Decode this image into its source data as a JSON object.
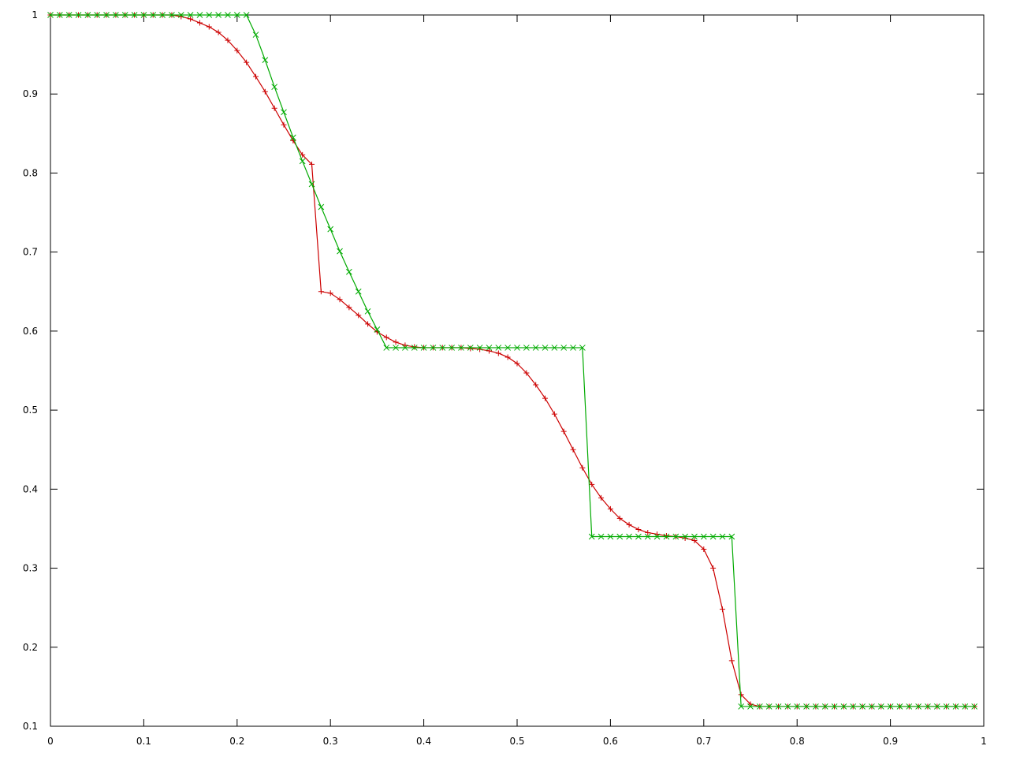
{
  "chart_data": {
    "type": "line",
    "title": "",
    "xlabel": "",
    "ylabel": "",
    "xlim": [
      0,
      1
    ],
    "ylim": [
      0.1,
      1
    ],
    "grid": false,
    "legend": "none",
    "x_ticks": [
      "0",
      "0.1",
      "0.2",
      "0.3",
      "0.4",
      "0.5",
      "0.6",
      "0.7",
      "0.8",
      "0.9",
      "1"
    ],
    "y_ticks": [
      "0.1",
      "0.2",
      "0.3",
      "0.4",
      "0.5",
      "0.6",
      "0.7",
      "0.8",
      "0.9",
      "1"
    ],
    "x": [
      0,
      0.01,
      0.02,
      0.03,
      0.04,
      0.05,
      0.06,
      0.07,
      0.08,
      0.09,
      0.1,
      0.11,
      0.12,
      0.13,
      0.14,
      0.15,
      0.16,
      0.17,
      0.18,
      0.19,
      0.2,
      0.21,
      0.22,
      0.23,
      0.24,
      0.25,
      0.26,
      0.27,
      0.28,
      0.29,
      0.3,
      0.31,
      0.32,
      0.33,
      0.34,
      0.35,
      0.36,
      0.37,
      0.38,
      0.39,
      0.4,
      0.41,
      0.42,
      0.43,
      0.44,
      0.45,
      0.46,
      0.47,
      0.48,
      0.49,
      0.5,
      0.51,
      0.52,
      0.53,
      0.54,
      0.55,
      0.56,
      0.57,
      0.58,
      0.59,
      0.6,
      0.61,
      0.62,
      0.63,
      0.64,
      0.65,
      0.66,
      0.67,
      0.68,
      0.69,
      0.7,
      0.71,
      0.72,
      0.73,
      0.74,
      0.75,
      0.76,
      0.77,
      0.78,
      0.79,
      0.8,
      0.81,
      0.82,
      0.83,
      0.84,
      0.85,
      0.86,
      0.87,
      0.88,
      0.89,
      0.9,
      0.91,
      0.92,
      0.93,
      0.94,
      0.95,
      0.96,
      0.97,
      0.98,
      0.99
    ],
    "series": [
      {
        "color": "#cc0000",
        "marker": "+",
        "values": [
          1,
          1,
          1,
          1,
          1,
          1,
          1,
          1,
          1,
          1,
          1,
          1,
          1,
          1,
          0.998,
          0.995,
          0.99,
          0.985,
          0.978,
          0.968,
          0.955,
          0.94,
          0.922,
          0.903,
          0.882,
          0.861,
          0.841,
          0.823,
          0.811,
          0.65,
          0.648,
          0.64,
          0.63,
          0.62,
          0.609,
          0.599,
          0.592,
          0.586,
          0.582,
          0.58,
          0.579,
          0.579,
          0.579,
          0.579,
          0.579,
          0.578,
          0.577,
          0.575,
          0.572,
          0.567,
          0.559,
          0.547,
          0.532,
          0.515,
          0.495,
          0.473,
          0.45,
          0.427,
          0.406,
          0.389,
          0.375,
          0.363,
          0.355,
          0.349,
          0.345,
          0.343,
          0.341,
          0.34,
          0.338,
          0.335,
          0.324,
          0.3,
          0.248,
          0.183,
          0.14,
          0.128,
          0.125,
          0.125,
          0.125,
          0.125,
          0.125,
          0.125,
          0.125,
          0.125,
          0.125,
          0.125,
          0.125,
          0.125,
          0.125,
          0.125,
          0.125,
          0.125,
          0.125,
          0.125,
          0.125,
          0.125,
          0.125,
          0.125,
          0.125,
          0.125
        ]
      },
      {
        "color": "#00aa00",
        "marker": "x",
        "values": [
          1,
          1,
          1,
          1,
          1,
          1,
          1,
          1,
          1,
          1,
          1,
          1,
          1,
          1,
          1,
          1,
          1,
          1,
          1,
          1,
          1,
          1,
          0.975,
          0.943,
          0.909,
          0.877,
          0.845,
          0.815,
          0.786,
          0.757,
          0.729,
          0.701,
          0.675,
          0.65,
          0.625,
          0.602,
          0.579,
          0.579,
          0.579,
          0.579,
          0.579,
          0.579,
          0.579,
          0.579,
          0.579,
          0.579,
          0.579,
          0.579,
          0.579,
          0.579,
          0.579,
          0.579,
          0.579,
          0.579,
          0.579,
          0.579,
          0.579,
          0.579,
          0.34,
          0.34,
          0.34,
          0.34,
          0.34,
          0.34,
          0.34,
          0.34,
          0.34,
          0.34,
          0.34,
          0.34,
          0.34,
          0.34,
          0.34,
          0.34,
          0.125,
          0.125,
          0.125,
          0.125,
          0.125,
          0.125,
          0.125,
          0.125,
          0.125,
          0.125,
          0.125,
          0.125,
          0.125,
          0.125,
          0.125,
          0.125,
          0.125,
          0.125,
          0.125,
          0.125,
          0.125,
          0.125,
          0.125,
          0.125,
          0.125,
          0.125
        ]
      }
    ]
  }
}
